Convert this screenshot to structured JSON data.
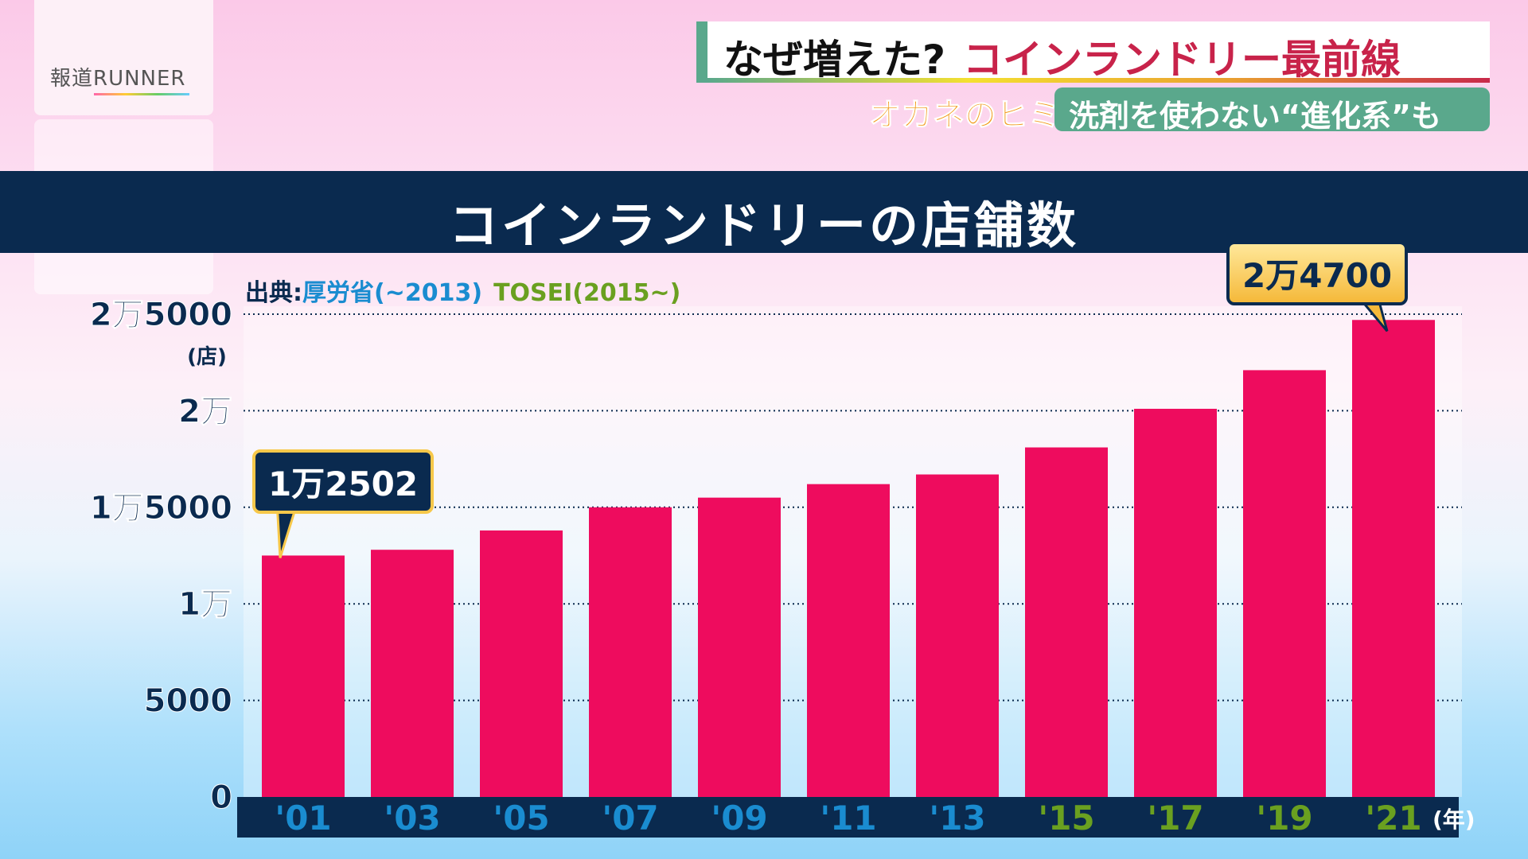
{
  "logo": {
    "text": "報道RUNNER"
  },
  "headline": {
    "question": "なぜ増えた?",
    "topic": "コインランドリー最前線"
  },
  "corner": {
    "segment": "オカネのヒミツ",
    "subtitle": "洗剤を使わない“進化系”も"
  },
  "chart_data": {
    "type": "bar",
    "title": "コインランドリーの店舗数",
    "source_label": "出典:",
    "source_mhlw": "厚労省(~2013)",
    "source_tosei": "TOSEI(2015~)",
    "ylabel": "(店)",
    "xlabel": "(年)",
    "ylim": [
      0,
      25000
    ],
    "yticks": [
      {
        "v": 0,
        "label": "0"
      },
      {
        "v": 5000,
        "label": "5000"
      },
      {
        "v": 10000,
        "label": "1万"
      },
      {
        "v": 15000,
        "label": "1万5000"
      },
      {
        "v": 20000,
        "label": "2万"
      },
      {
        "v": 25000,
        "label": "2万5000"
      }
    ],
    "categories": [
      "'01",
      "'03",
      "'05",
      "'07",
      "'09",
      "'11",
      "'13",
      "'15",
      "'17",
      "'19",
      "'21"
    ],
    "values": [
      12502,
      12800,
      13800,
      15000,
      15500,
      16200,
      16700,
      18100,
      20100,
      22100,
      24700
    ],
    "annotations": {
      "first": "1万2502",
      "last": "2万4700"
    },
    "bar_color": "#ee0c5e",
    "label_colors": {
      "mhlw": "#1a8cd0",
      "tosei": "#6aa020"
    }
  }
}
